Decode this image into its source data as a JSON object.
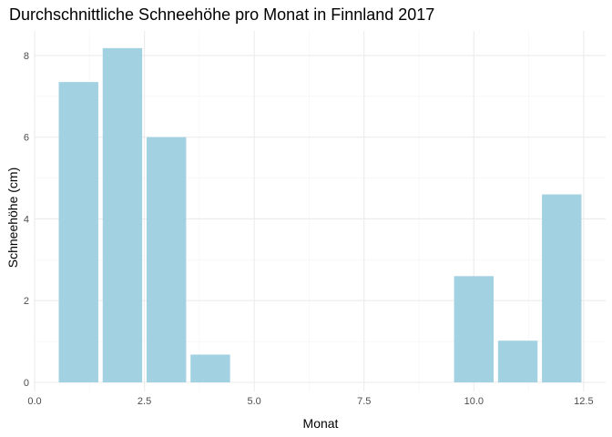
{
  "chart_data": {
    "type": "bar",
    "title": "Durchschnittliche Schneehöhe pro Monat in Finnland 2017",
    "xlabel": "Monat",
    "ylabel": "Schneehöhe (cm)",
    "xlim": [
      0,
      13
    ],
    "ylim": [
      0,
      8.6
    ],
    "xticks": [
      0.0,
      2.5,
      5.0,
      7.5,
      10.0,
      12.5
    ],
    "xtick_labels": [
      "0.0",
      "2.5",
      "5.0",
      "7.5",
      "10.0",
      "12.5"
    ],
    "yticks": [
      0,
      2,
      4,
      6,
      8
    ],
    "ytick_labels": [
      "0",
      "2",
      "4",
      "6",
      "8"
    ],
    "grid": true,
    "bar_color": "#a2d1e2",
    "x": [
      1,
      2,
      3,
      4,
      5,
      6,
      7,
      8,
      9,
      10,
      11,
      12
    ],
    "values": [
      7.35,
      8.18,
      6.0,
      0.68,
      0,
      0,
      0,
      0,
      0,
      2.6,
      1.02,
      4.6
    ]
  }
}
